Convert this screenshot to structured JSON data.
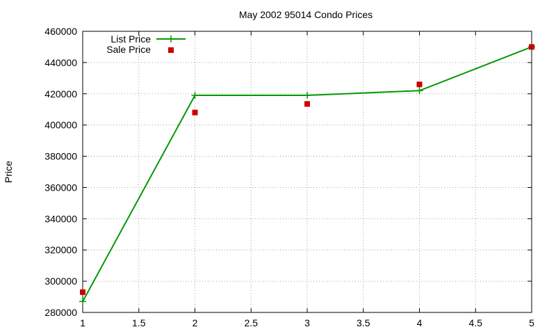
{
  "chart_data": {
    "type": "line",
    "title": "May 2002 95014 Condo Prices",
    "xlabel": "",
    "ylabel": "Price",
    "xlim": [
      1,
      5
    ],
    "ylim": [
      280000,
      460000
    ],
    "grid": true,
    "legend_position": "top-left",
    "x_ticks": [
      "1",
      "1.5",
      "2",
      "2.5",
      "3",
      "3.5",
      "4",
      "4.5",
      "5"
    ],
    "y_ticks": [
      "280000",
      "300000",
      "320000",
      "340000",
      "360000",
      "380000",
      "400000",
      "420000",
      "440000",
      "460000"
    ],
    "series": [
      {
        "name": "List Price",
        "style": "linespoints",
        "marker": "plus",
        "color": "#009900",
        "x": [
          1,
          2,
          3,
          4,
          5
        ],
        "y": [
          287000,
          419000,
          419000,
          422000,
          450000
        ]
      },
      {
        "name": "Sale Price",
        "style": "points",
        "marker": "square",
        "color": "#cc0000",
        "x": [
          1,
          2,
          3,
          4,
          5
        ],
        "y": [
          293000,
          408000,
          413500,
          426000,
          450000
        ]
      }
    ]
  }
}
